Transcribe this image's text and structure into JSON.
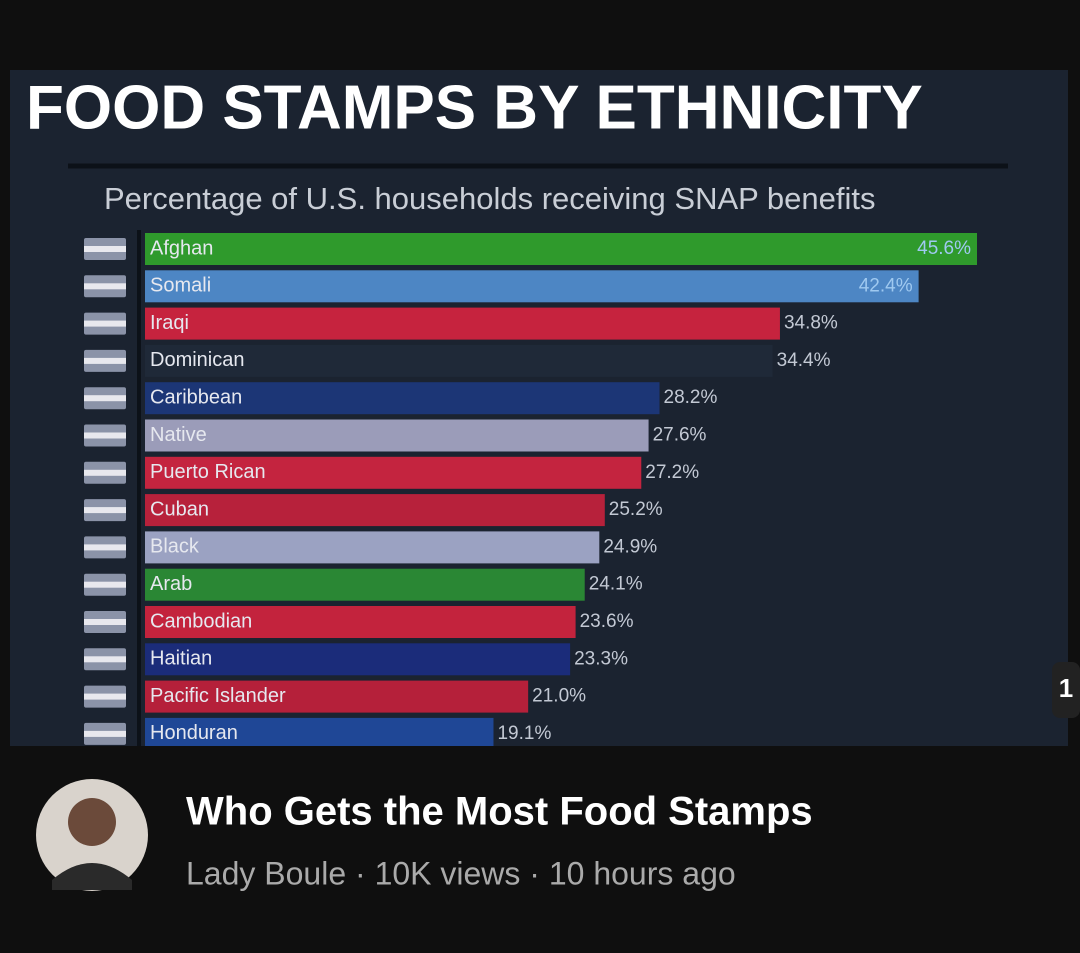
{
  "chart_data": {
    "type": "bar",
    "orientation": "horizontal",
    "title": "FOOD STAMPS BY ETHNICITY",
    "subtitle": "Percentage of U.S. households receiving SNAP benefits",
    "categories": [
      "Afghan",
      "Somali",
      "Iraqi",
      "Dominican",
      "Caribbean",
      "Native",
      "Puerto Rican",
      "Cuban",
      "Black",
      "Arab",
      "Cambodian",
      "Haitian",
      "Pacific Islander",
      "Honduran"
    ],
    "values": [
      45.6,
      42.4,
      34.8,
      34.4,
      28.2,
      27.6,
      27.2,
      25.2,
      24.9,
      24.1,
      23.6,
      23.3,
      21.0,
      19.1
    ],
    "value_labels": [
      "45.6%",
      "42.4%",
      "34.8%",
      "34.4%",
      "28.2%",
      "27.6%",
      "27.2%",
      "25.2%",
      "24.9%",
      "24.1%",
      "23.6%",
      "23.3%",
      "21.0%",
      "19.1%"
    ],
    "colors": [
      "#2f9a2c",
      "#4d86c4",
      "#c6233e",
      "#1f2938",
      "#1c3676",
      "#9b9cb9",
      "#c4243f",
      "#b7213b",
      "#9ba2c2",
      "#2a8734",
      "#c3233d",
      "#1b2c7a",
      "#b5203a",
      "#1f4796"
    ]
  },
  "video": {
    "title": "Who Gets the Most Food Stamps",
    "meta": "Lady Boule · 10K views · 10 hours ago",
    "side_badge": "1"
  }
}
